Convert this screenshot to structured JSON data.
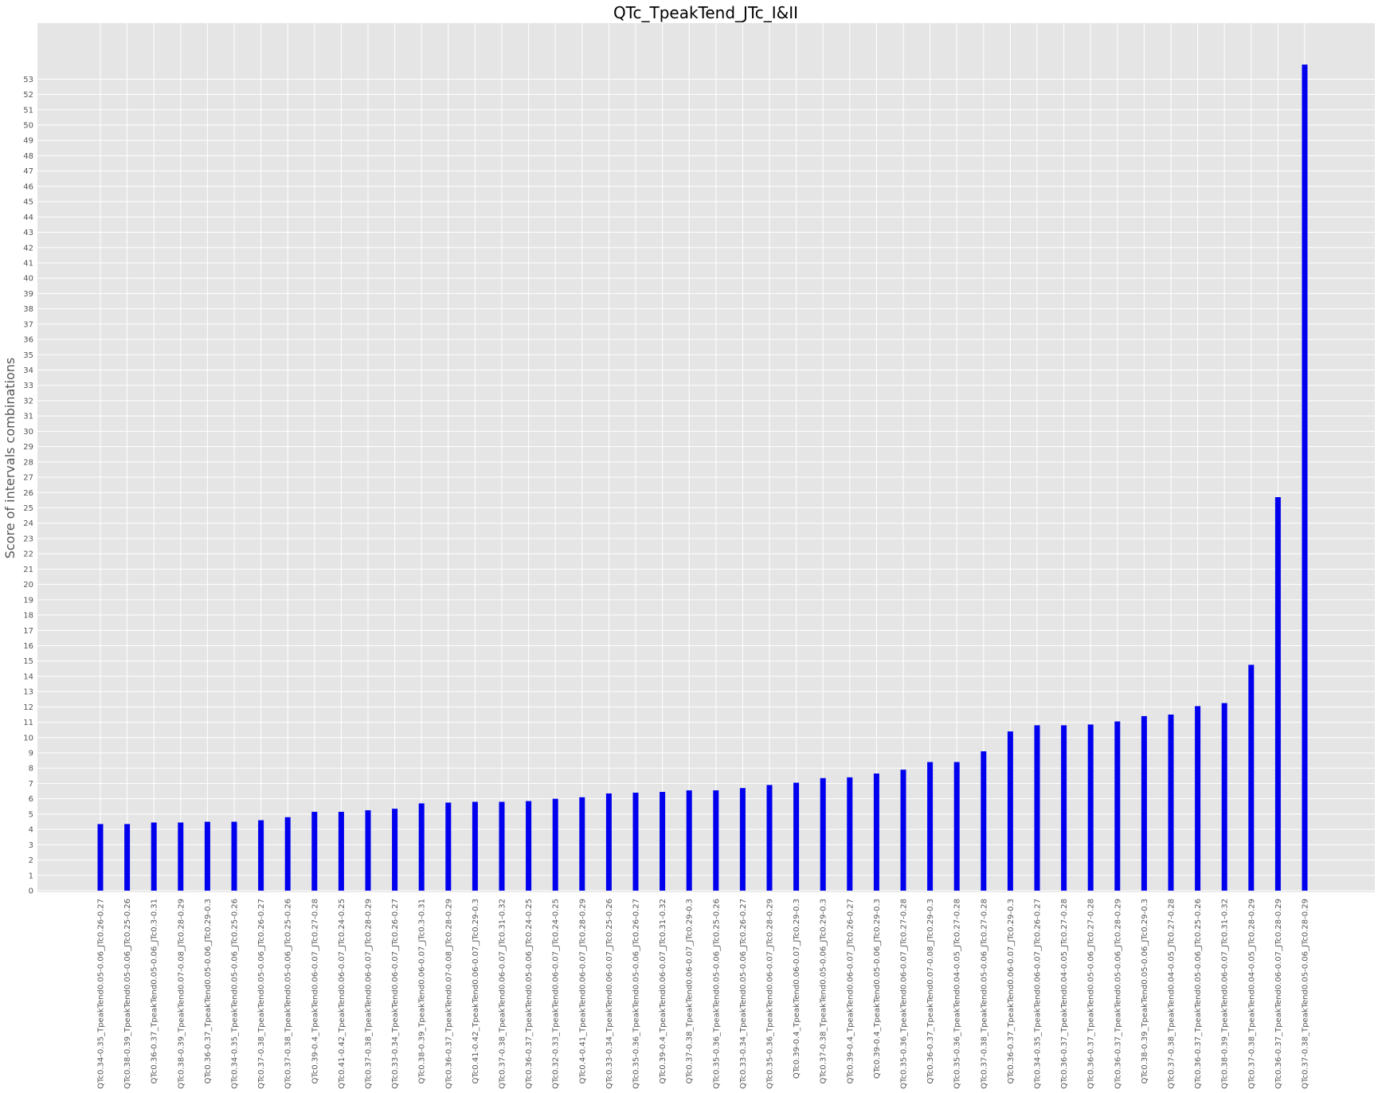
{
  "chart_data": {
    "type": "bar",
    "title": "QTc_TpeakTend_JTc_I&II",
    "xlabel": "",
    "ylabel": "Score of intervals combinations",
    "ylim": [
      0,
      55
    ],
    "y_ticks": [
      0,
      1,
      2,
      3,
      4,
      5,
      6,
      7,
      8,
      9,
      10,
      11,
      12,
      13,
      14,
      15,
      16,
      17,
      18,
      19,
      20,
      21,
      22,
      23,
      24,
      25,
      26,
      27,
      28,
      29,
      30,
      31,
      32,
      33,
      34,
      35,
      36,
      37,
      38,
      39,
      40,
      41,
      42,
      43,
      44,
      45,
      46,
      47,
      48,
      49,
      50,
      51,
      52,
      53
    ],
    "grid": true,
    "bar_color": "#0000ee",
    "background_color": "#e5e5e5",
    "grid_color": "#ffffff",
    "categories": [
      "QTc0.34-0.35_TpeakTend0.05-0.06_JTc0.26-0.27",
      "QTc0.38-0.39_TpeakTend0.05-0.06_JTc0.25-0.26",
      "QTc0.36-0.37_TpeakTend0.05-0.06_JTc0.3-0.31",
      "QTc0.38-0.39_TpeakTend0.07-0.08_JTc0.28-0.29",
      "QTc0.36-0.37_TpeakTend0.05-0.06_JTc0.29-0.3",
      "QTc0.34-0.35_TpeakTend0.05-0.06_JTc0.25-0.26",
      "QTc0.37-0.38_TpeakTend0.05-0.06_JTc0.26-0.27",
      "QTc0.37-0.38_TpeakTend0.05-0.06_JTc0.25-0.26",
      "QTc0.39-0.4_TpeakTend0.06-0.07_JTc0.27-0.28",
      "QTc0.41-0.42_TpeakTend0.06-0.07_JTc0.24-0.25",
      "QTc0.37-0.38_TpeakTend0.06-0.07_JTc0.28-0.29",
      "QTc0.33-0.34_TpeakTend0.06-0.07_JTc0.26-0.27",
      "QTc0.38-0.39_TpeakTend0.06-0.07_JTc0.3-0.31",
      "QTc0.36-0.37_TpeakTend0.07-0.08_JTc0.28-0.29",
      "QTc0.41-0.42_TpeakTend0.06-0.07_JTc0.29-0.3",
      "QTc0.37-0.38_TpeakTend0.06-0.07_JTc0.31-0.32",
      "QTc0.36-0.37_TpeakTend0.05-0.06_JTc0.24-0.25",
      "QTc0.32-0.33_TpeakTend0.06-0.07_JTc0.24-0.25",
      "QTc0.4-0.41_TpeakTend0.06-0.07_JTc0.28-0.29",
      "QTc0.33-0.34_TpeakTend0.06-0.07_JTc0.25-0.26",
      "QTc0.35-0.36_TpeakTend0.05-0.06_JTc0.26-0.27",
      "QTc0.39-0.4_TpeakTend0.06-0.07_JTc0.31-0.32",
      "QTc0.37-0.38_TpeakTend0.06-0.07_JTc0.29-0.3",
      "QTc0.35-0.36_TpeakTend0.05-0.06_JTc0.25-0.26",
      "QTc0.33-0.34_TpeakTend0.05-0.06_JTc0.26-0.27",
      "QTc0.35-0.36_TpeakTend0.06-0.07_JTc0.28-0.29",
      "QTc0.39-0.4_TpeakTend0.06-0.07_JTc0.29-0.3",
      "QTc0.37-0.38_TpeakTend0.05-0.06_JTc0.29-0.3",
      "QTc0.39-0.4_TpeakTend0.06-0.07_JTc0.26-0.27",
      "QTc0.39-0.4_TpeakTend0.05-0.06_JTc0.29-0.3",
      "QTc0.35-0.36_TpeakTend0.06-0.07_JTc0.27-0.28",
      "QTc0.36-0.37_TpeakTend0.07-0.08_JTc0.29-0.3",
      "QTc0.35-0.36_TpeakTend0.04-0.05_JTc0.27-0.28",
      "QTc0.37-0.38_TpeakTend0.05-0.06_JTc0.27-0.28",
      "QTc0.36-0.37_TpeakTend0.06-0.07_JTc0.29-0.3",
      "QTc0.34-0.35_TpeakTend0.06-0.07_JTc0.26-0.27",
      "QTc0.36-0.37_TpeakTend0.04-0.05_JTc0.27-0.28",
      "QTc0.36-0.37_TpeakTend0.05-0.06_JTc0.27-0.28",
      "QTc0.36-0.37_TpeakTend0.05-0.06_JTc0.28-0.29",
      "QTc0.38-0.39_TpeakTend0.05-0.06_JTc0.29-0.3",
      "QTc0.37-0.38_TpeakTend0.04-0.05_JTc0.27-0.28",
      "QTc0.36-0.37_TpeakTend0.05-0.06_JTc0.25-0.26",
      "QTc0.38-0.39_TpeakTend0.06-0.07_JTc0.31-0.32",
      "QTc0.37-0.38_TpeakTend0.04-0.05_JTc0.28-0.29",
      "QTc0.36-0.37_TpeakTend0.06-0.07_JTc0.28-0.29",
      "QTc0.37-0.38_TpeakTend0.05-0.06_JTc0.28-0.29"
    ],
    "values": [
      4.35,
      4.35,
      4.45,
      4.45,
      4.5,
      4.5,
      4.6,
      4.8,
      5.15,
      5.15,
      5.25,
      5.35,
      5.7,
      5.75,
      5.8,
      5.8,
      5.85,
      6.0,
      6.1,
      6.35,
      6.4,
      6.45,
      6.55,
      6.55,
      6.7,
      6.9,
      7.05,
      7.35,
      7.4,
      7.65,
      7.9,
      8.4,
      8.4,
      9.1,
      10.4,
      10.8,
      10.8,
      10.85,
      11.05,
      11.4,
      11.5,
      12.05,
      12.25,
      14.75,
      25.7,
      53.95
    ]
  }
}
